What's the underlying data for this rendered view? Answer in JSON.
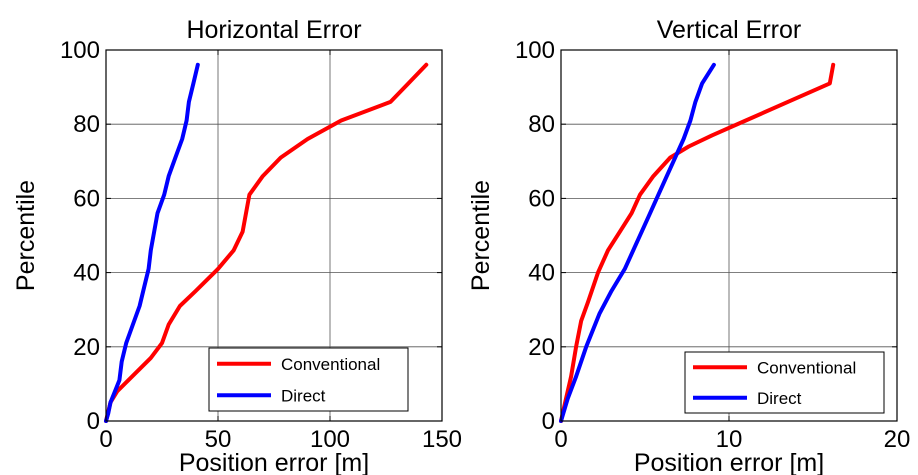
{
  "chart_data": [
    {
      "type": "line",
      "title": "Horizontal Error",
      "xlabel": "Position error [m]",
      "ylabel": "Percentile",
      "xlim": [
        0,
        150
      ],
      "ylim": [
        0,
        100
      ],
      "xticks": [
        "0",
        "50",
        "100",
        "150"
      ],
      "yticks": [
        "0",
        "20",
        "40",
        "60",
        "80",
        "100"
      ],
      "grid": true,
      "legend_position": "bottom-right",
      "series": [
        {
          "name": "Conventional",
          "color": "#ff0000",
          "x": [
            0,
            2,
            5,
            10,
            15,
            20,
            25,
            28,
            33,
            40,
            50,
            57,
            61,
            64,
            70,
            78,
            90,
            105,
            127,
            135,
            143
          ],
          "y": [
            0,
            5,
            8,
            11,
            14,
            17,
            21,
            26,
            31,
            35,
            41,
            46,
            51,
            61,
            66,
            71,
            76,
            81,
            86,
            91,
            96
          ]
        },
        {
          "name": "Direct",
          "color": "#0000ff",
          "x": [
            0,
            1,
            2,
            4,
            6,
            7,
            9,
            12,
            15,
            17,
            19,
            20,
            23,
            26,
            28,
            31,
            34,
            36,
            37,
            39,
            41
          ],
          "y": [
            0,
            2,
            5,
            8,
            11,
            16,
            21,
            26,
            31,
            36,
            41,
            46,
            56,
            61,
            66,
            71,
            76,
            81,
            86,
            91,
            96
          ]
        }
      ]
    },
    {
      "type": "line",
      "title": "Vertical Error",
      "xlabel": "Position error [m]",
      "ylabel": "Percentile",
      "xlim": [
        0,
        20
      ],
      "ylim": [
        0,
        100
      ],
      "xticks": [
        "0",
        "10",
        "20"
      ],
      "yticks": [
        "0",
        "20",
        "40",
        "60",
        "80",
        "100"
      ],
      "grid": true,
      "legend_position": "bottom-right",
      "series": [
        {
          "name": "Conventional",
          "color": "#ff0000",
          "x": [
            0,
            0.3,
            0.6,
            0.9,
            1.2,
            1.6,
            2.2,
            2.8,
            3.5,
            4.2,
            4.7,
            5.5,
            6.5,
            7.6,
            9.0,
            11.0,
            13.5,
            16.0,
            16.2
          ],
          "y": [
            0,
            6,
            12,
            20,
            27,
            32,
            40,
            46,
            51,
            56,
            61,
            66,
            71,
            74,
            77,
            81,
            86,
            91,
            96
          ]
        },
        {
          "name": "Direct",
          "color": "#0000ff",
          "x": [
            0,
            0.4,
            0.9,
            1.5,
            2.3,
            3.0,
            3.8,
            4.6,
            5.2,
            5.8,
            6.3,
            6.8,
            7.3,
            7.7,
            8.0,
            8.4,
            9.1
          ],
          "y": [
            0,
            6,
            12,
            20,
            29,
            35,
            41,
            49,
            55,
            61,
            66,
            71,
            76,
            81,
            86,
            91,
            96
          ]
        }
      ]
    }
  ]
}
